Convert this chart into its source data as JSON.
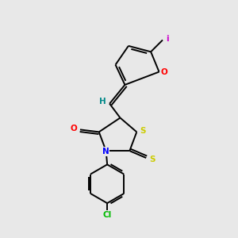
{
  "bg_color": "#e8e8e8",
  "bond_color": "#000000",
  "atom_colors": {
    "O": "#ff0000",
    "N": "#0000ff",
    "S": "#cccc00",
    "Cl": "#00bb00",
    "I": "#cc00cc",
    "H": "#008888"
  },
  "figsize": [
    3.0,
    3.0
  ],
  "dpi": 100
}
